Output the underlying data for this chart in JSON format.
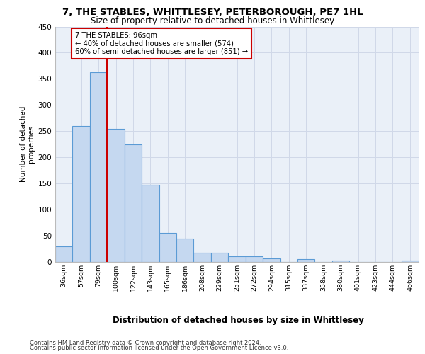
{
  "title_line1": "7, THE STABLES, WHITTLESEY, PETERBOROUGH, PE7 1HL",
  "title_line2": "Size of property relative to detached houses in Whittlesey",
  "xlabel": "Distribution of detached houses by size in Whittlesey",
  "ylabel": "Number of detached\nproperties",
  "bar_labels": [
    "36sqm",
    "57sqm",
    "79sqm",
    "100sqm",
    "122sqm",
    "143sqm",
    "165sqm",
    "186sqm",
    "208sqm",
    "229sqm",
    "251sqm",
    "272sqm",
    "294sqm",
    "315sqm",
    "337sqm",
    "358sqm",
    "380sqm",
    "401sqm",
    "423sqm",
    "444sqm",
    "466sqm"
  ],
  "bar_values": [
    30,
    260,
    363,
    255,
    224,
    147,
    56,
    44,
    17,
    17,
    11,
    11,
    7,
    0,
    5,
    0,
    3,
    0,
    0,
    0,
    3
  ],
  "bar_color": "#c5d8f0",
  "bar_edge_color": "#5b9bd5",
  "marker_label_line1": "7 THE STABLES: 96sqm",
  "marker_label_line2": "← 40% of detached houses are smaller (574)",
  "marker_label_line3": "60% of semi-detached houses are larger (851) →",
  "vline_color": "#cc0000",
  "annotation_box_color": "#cc0000",
  "grid_color": "#d0d8e8",
  "background_color": "#eaf0f8",
  "footer_line1": "Contains HM Land Registry data © Crown copyright and database right 2024.",
  "footer_line2": "Contains public sector information licensed under the Open Government Licence v3.0.",
  "ylim": [
    0,
    450
  ],
  "yticks": [
    0,
    50,
    100,
    150,
    200,
    250,
    300,
    350,
    400,
    450
  ]
}
